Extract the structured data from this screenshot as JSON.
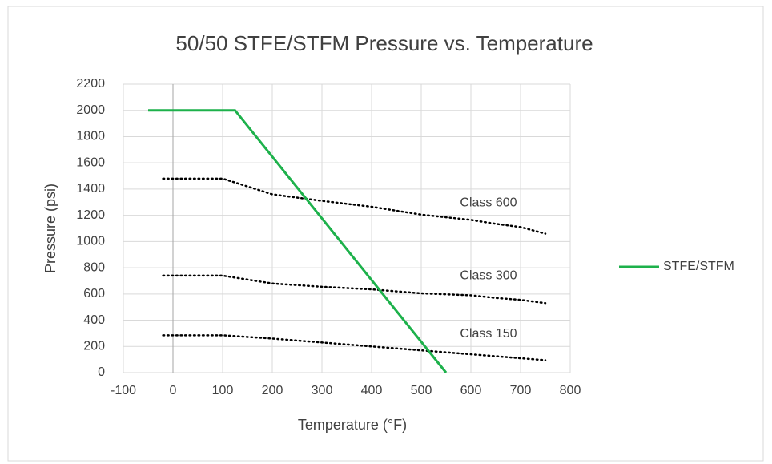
{
  "chart_data": {
    "type": "line",
    "title": "50/50 STFE/STFM Pressure vs. Temperature",
    "x_label": "Temperature (°F)",
    "y_label": "Pressure (psi)",
    "xlim": [
      -100,
      800
    ],
    "xticks": [
      -100,
      0,
      100,
      200,
      300,
      400,
      500,
      600,
      700,
      800
    ],
    "ylim": [
      0,
      2200
    ],
    "yticks": [
      0,
      200,
      400,
      600,
      800,
      1000,
      1200,
      1400,
      1600,
      1800,
      2000,
      2200
    ],
    "grid": true,
    "legend": "right",
    "series": [
      {
        "name": "STFE/STFM",
        "color": "#1db14b",
        "x": [
          -50,
          115,
          125,
          550
        ],
        "values": [
          2000,
          2000,
          2000,
          0
        ]
      }
    ],
    "reference_lines": [
      {
        "label": "Class 600",
        "color": "#000000",
        "x": [
          -20,
          100,
          200,
          300,
          400,
          500,
          600,
          650,
          700,
          750
        ],
        "values": [
          1480,
          1480,
          1360,
          1310,
          1265,
          1205,
          1165,
          1135,
          1110,
          1060
        ]
      },
      {
        "label": "Class 300",
        "color": "#000000",
        "x": [
          -20,
          100,
          200,
          300,
          400,
          500,
          600,
          650,
          700,
          750
        ],
        "values": [
          740,
          740,
          680,
          655,
          635,
          605,
          590,
          570,
          555,
          530
        ]
      },
      {
        "label": "Class 150",
        "color": "#000000",
        "x": [
          -20,
          100,
          200,
          300,
          400,
          500,
          600,
          650,
          700,
          750
        ],
        "values": [
          285,
          285,
          260,
          230,
          200,
          170,
          140,
          125,
          110,
          95
        ]
      }
    ]
  }
}
